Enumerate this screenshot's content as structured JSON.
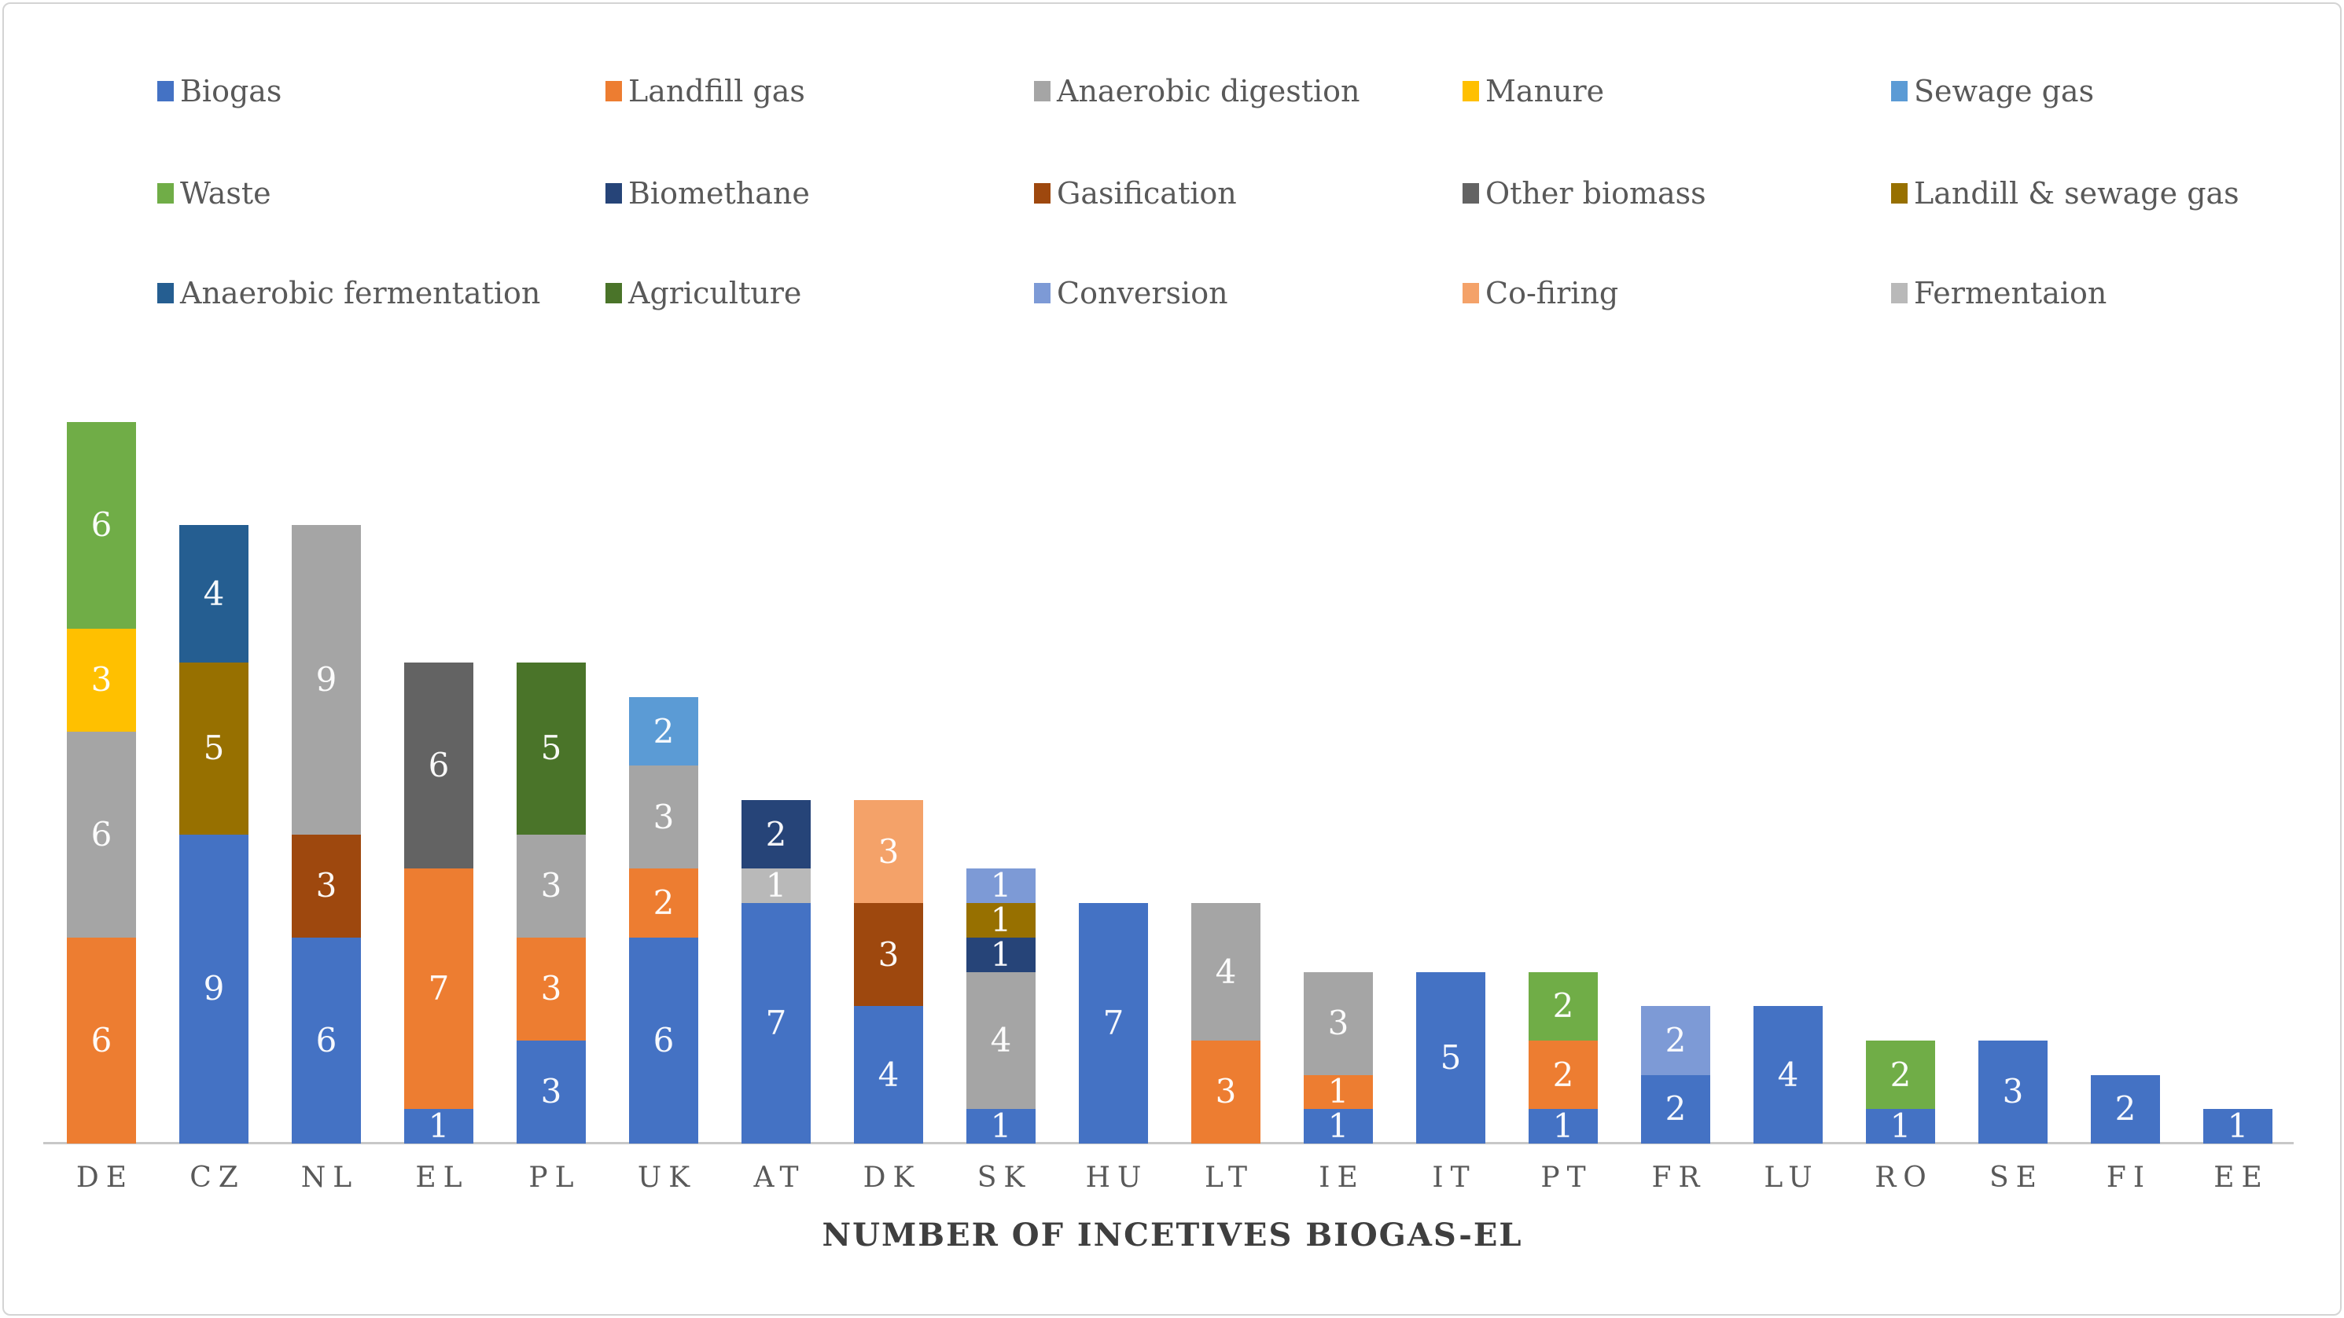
{
  "colors": {
    "Biogas": "#4472C4",
    "Landfill gas": "#ED7D31",
    "Anaerobic digestion": "#A5A5A5",
    "Manure": "#FFC000",
    "Sewage gas": "#5B9BD5",
    "Waste": "#70AD47",
    "Biomethane": "#264478",
    "Gasification": "#9E480E",
    "Other biomass": "#636363",
    "Landill & sewage gas": "#977000",
    "Anaerobic fermentation": "#255E91",
    "Agriculture": "#4A7429",
    "Conversion": "#7D9AD6",
    "Co-firing": "#F4A269",
    "Fermentaion": "#B9B9B9"
  },
  "legend": {
    "rows": [
      [
        "Biogas",
        "Landfill gas",
        "Anaerobic digestion",
        "Manure",
        "Sewage gas"
      ],
      [
        "Waste",
        "Biomethane",
        "Gasification",
        "Other biomass",
        "Landill & sewage gas"
      ],
      [
        "Anaerobic fermentation",
        "Agriculture",
        "Conversion",
        "Co-firing",
        "Fermentaion"
      ]
    ]
  },
  "chart_data": {
    "type": "bar",
    "subtype": "stacked",
    "title": "NUMBER OF INCETIVES BIOGAS-EL",
    "xlabel": "NUMBER OF INCETIVES BIOGAS-EL",
    "ylabel": "",
    "ylim": [
      0,
      21
    ],
    "grid": false,
    "legend_position": "top",
    "value_labels": "white, centered in each segment",
    "categories": [
      "DE",
      "CZ",
      "NL",
      "EL",
      "PL",
      "UK",
      "AT",
      "DK",
      "SK",
      "HU",
      "LT",
      "IE",
      "IT",
      "PT",
      "FR",
      "LU",
      "RO",
      "SE",
      "FI",
      "EE"
    ],
    "series": [
      {
        "name": "Biogas",
        "values": [
          0,
          9,
          6,
          1,
          3,
          6,
          7,
          4,
          1,
          7,
          0,
          1,
          5,
          1,
          2,
          4,
          1,
          3,
          2,
          1
        ]
      },
      {
        "name": "Landfill gas",
        "values": [
          6,
          0,
          0,
          7,
          3,
          2,
          0,
          0,
          0,
          0,
          3,
          1,
          0,
          2,
          0,
          0,
          0,
          0,
          0,
          0
        ]
      },
      {
        "name": "Gasification",
        "values": [
          0,
          0,
          3,
          0,
          0,
          0,
          0,
          3,
          0,
          0,
          0,
          0,
          0,
          0,
          0,
          0,
          0,
          0,
          0,
          0
        ]
      },
      {
        "name": "Anaerobic digestion",
        "values": [
          6,
          0,
          9,
          0,
          3,
          3,
          0,
          0,
          4,
          0,
          4,
          3,
          0,
          0,
          0,
          0,
          0,
          0,
          0,
          0
        ]
      },
      {
        "name": "Manure",
        "values": [
          3,
          0,
          0,
          0,
          0,
          0,
          0,
          0,
          0,
          0,
          0,
          0,
          0,
          0,
          0,
          0,
          0,
          0,
          0,
          0
        ]
      },
      {
        "name": "Sewage gas",
        "values": [
          0,
          0,
          0,
          0,
          0,
          2,
          0,
          0,
          0,
          0,
          0,
          0,
          0,
          0,
          0,
          0,
          0,
          0,
          0,
          0
        ]
      },
      {
        "name": "Waste",
        "values": [
          6,
          0,
          0,
          0,
          0,
          0,
          0,
          0,
          0,
          0,
          0,
          0,
          0,
          2,
          0,
          0,
          2,
          0,
          0,
          0
        ]
      },
      {
        "name": "Fermentaion",
        "values": [
          0,
          0,
          0,
          0,
          0,
          0,
          1,
          0,
          0,
          0,
          0,
          0,
          0,
          0,
          0,
          0,
          0,
          0,
          0,
          0
        ]
      },
      {
        "name": "Biomethane",
        "values": [
          0,
          0,
          0,
          0,
          0,
          0,
          2,
          0,
          1,
          0,
          0,
          0,
          0,
          0,
          0,
          0,
          0,
          0,
          0,
          0
        ]
      },
      {
        "name": "Landill & sewage gas",
        "values": [
          0,
          5,
          0,
          0,
          0,
          0,
          0,
          0,
          1,
          0,
          0,
          0,
          0,
          0,
          0,
          0,
          0,
          0,
          0,
          0
        ]
      },
      {
        "name": "Anaerobic fermentation",
        "values": [
          0,
          4,
          0,
          0,
          0,
          0,
          0,
          0,
          0,
          0,
          0,
          0,
          0,
          0,
          0,
          0,
          0,
          0,
          0,
          0
        ]
      },
      {
        "name": "Conversion",
        "values": [
          0,
          0,
          0,
          0,
          0,
          0,
          0,
          0,
          1,
          0,
          0,
          0,
          0,
          0,
          2,
          0,
          0,
          0,
          0,
          0
        ]
      },
      {
        "name": "Co-firing",
        "values": [
          0,
          0,
          0,
          0,
          0,
          0,
          0,
          3,
          0,
          0,
          0,
          0,
          0,
          0,
          0,
          0,
          0,
          0,
          0,
          0
        ]
      },
      {
        "name": "Other biomass",
        "values": [
          0,
          0,
          0,
          6,
          0,
          0,
          0,
          0,
          0,
          0,
          0,
          0,
          0,
          0,
          0,
          0,
          0,
          0,
          0,
          0
        ]
      },
      {
        "name": "Agriculture",
        "values": [
          0,
          0,
          0,
          0,
          5,
          0,
          0,
          0,
          0,
          0,
          0,
          0,
          0,
          0,
          0,
          0,
          0,
          0,
          0,
          0
        ]
      }
    ],
    "bar_totals": [
      21,
      18,
      18,
      14,
      14,
      13,
      10,
      10,
      8,
      7,
      7,
      5,
      5,
      5,
      4,
      4,
      3,
      3,
      2,
      1
    ]
  }
}
